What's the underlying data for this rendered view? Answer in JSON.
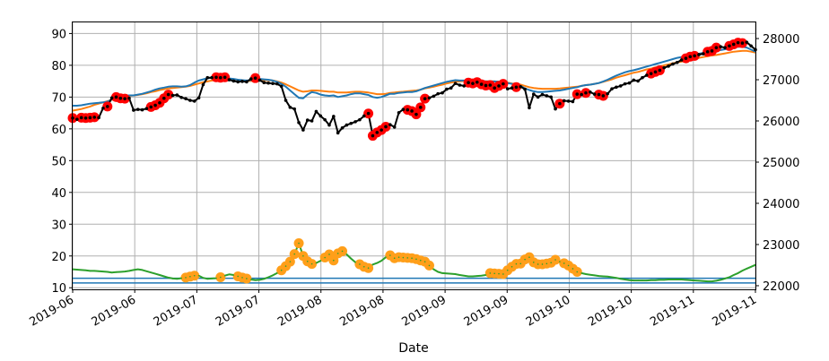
{
  "chart_data": {
    "type": "line",
    "xlabel": "Date",
    "x_tick_labels": [
      "2019-06",
      "2019-06",
      "2019-07",
      "2019-07",
      "2019-08",
      "2019-08",
      "2019-09",
      "2019-09",
      "2019-10",
      "2019-10",
      "2019-11",
      "2019-11"
    ],
    "y_left": {
      "ylim": [
        9.5,
        93.5
      ],
      "ticks": [
        10,
        20,
        30,
        40,
        50,
        60,
        70,
        80,
        90
      ]
    },
    "y_right": {
      "ylim": [
        21912,
        28392
      ],
      "ticks": [
        22000,
        23000,
        24000,
        25000,
        26000,
        27000,
        28000
      ]
    },
    "grid": true,
    "colors": {
      "price": "#000000",
      "signal_a": "#1f77b4",
      "signal_b": "#ff7f0e",
      "lower": "#2ca02c",
      "markers_high": "#ff0000",
      "markers_low": "#ff9f1a",
      "hlines": "#1f77b4"
    },
    "hlines_left": [
      11.5,
      13.0
    ],
    "series": [
      {
        "key": "price",
        "axis": "right",
        "marker": true,
        "values": [
          26070,
          26040,
          26080,
          26070,
          26080,
          26090,
          26080,
          26310,
          26350,
          26560,
          26580,
          26550,
          26540,
          26550,
          26260,
          26280,
          26270,
          26300,
          26340,
          26380,
          26440,
          26550,
          26640,
          26620,
          26630,
          26570,
          26540,
          26500,
          26480,
          26560,
          26880,
          27050,
          27050,
          27060,
          27050,
          27060,
          27000,
          26970,
          26950,
          26960,
          26950,
          27020,
          27040,
          26990,
          26930,
          26920,
          26910,
          26900,
          26840,
          26500,
          26330,
          26290,
          25960,
          25780,
          26020,
          26000,
          26230,
          26120,
          26030,
          25900,
          26110,
          25710,
          25830,
          25900,
          25940,
          25980,
          26030,
          26120,
          26180,
          25640,
          25720,
          25780,
          25860,
          25910,
          25850,
          26200,
          26280,
          26270,
          26240,
          26160,
          26330,
          26540,
          26560,
          26600,
          26660,
          26680,
          26770,
          26800,
          26910,
          26870,
          26850,
          26930,
          26910,
          26940,
          26890,
          26860,
          26870,
          26800,
          26850,
          26900,
          26780,
          26800,
          26820,
          26830,
          26770,
          26320,
          26650,
          26580,
          26640,
          26610,
          26580,
          26290,
          26420,
          26490,
          26480,
          26470,
          26650,
          26640,
          26680,
          26700,
          26650,
          26640,
          26610,
          26660,
          26780,
          26820,
          26850,
          26900,
          26920,
          26990,
          26970,
          27050,
          27110,
          27150,
          27190,
          27230,
          27290,
          27330,
          27380,
          27420,
          27480,
          27520,
          27560,
          27580,
          27610,
          27630,
          27680,
          27700,
          27780,
          27800,
          27780,
          27820,
          27860,
          27900,
          27890,
          27910,
          27820,
          27730
        ]
      },
      {
        "key": "signal_a",
        "axis": "right",
        "marker": false,
        "values": [
          26370,
          26370,
          26380,
          26400,
          26420,
          26430,
          26440,
          26450,
          26470,
          26520,
          26560,
          26590,
          26610,
          26620,
          26620,
          26640,
          26660,
          26690,
          26720,
          26760,
          26790,
          26810,
          26830,
          26840,
          26840,
          26830,
          26840,
          26870,
          26930,
          26980,
          27010,
          27040,
          27050,
          27050,
          27060,
          27040,
          27030,
          27020,
          27000,
          26990,
          26980,
          26990,
          27010,
          27020,
          27010,
          27000,
          26980,
          26950,
          26900,
          26830,
          26740,
          26650,
          26560,
          26550,
          26640,
          26700,
          26680,
          26640,
          26620,
          26610,
          26620,
          26580,
          26600,
          26620,
          26650,
          26670,
          26670,
          26650,
          26630,
          26580,
          26560,
          26580,
          26620,
          26660,
          26660,
          26680,
          26690,
          26700,
          26700,
          26720,
          26760,
          26800,
          26830,
          26860,
          26890,
          26920,
          26950,
          26970,
          26990,
          26980,
          26980,
          26990,
          26980,
          26980,
          26970,
          26960,
          26960,
          26960,
          26950,
          26940,
          26920,
          26900,
          26880,
          26850,
          26790,
          26750,
          26720,
          26700,
          26700,
          26710,
          26720,
          26730,
          26740,
          26760,
          26780,
          26800,
          26820,
          26850,
          26870,
          26880,
          26900,
          26920,
          26960,
          27000,
          27050,
          27100,
          27140,
          27180,
          27210,
          27230,
          27260,
          27290,
          27320,
          27350,
          27380,
          27410,
          27440,
          27470,
          27500,
          27530,
          27550,
          27580,
          27600,
          27620,
          27630,
          27650,
          27670,
          27690,
          27710,
          27720,
          27740,
          27760,
          27780,
          27800,
          27800,
          27780,
          27730,
          27680
        ]
      },
      {
        "key": "signal_b",
        "axis": "right",
        "marker": false,
        "values": [
          26250,
          26270,
          26290,
          26320,
          26350,
          26390,
          26420,
          26450,
          26480,
          26510,
          26540,
          26570,
          26590,
          26610,
          26620,
          26630,
          26650,
          26670,
          26700,
          26720,
          26750,
          26770,
          26790,
          26800,
          26810,
          26820,
          26830,
          26850,
          26880,
          26910,
          26940,
          26960,
          26980,
          26990,
          27000,
          27000,
          27000,
          27000,
          26990,
          26980,
          26970,
          26970,
          26980,
          26990,
          26990,
          26990,
          26980,
          26960,
          26930,
          26890,
          26840,
          26790,
          26740,
          26710,
          26720,
          26740,
          26740,
          26730,
          26720,
          26710,
          26710,
          26690,
          26690,
          26690,
          26700,
          26710,
          26710,
          26700,
          26690,
          26670,
          26650,
          26650,
          26660,
          26680,
          26690,
          26700,
          26710,
          26720,
          26730,
          26740,
          26760,
          26790,
          26810,
          26830,
          26860,
          26880,
          26910,
          26930,
          26950,
          26960,
          26970,
          26970,
          26970,
          26970,
          26970,
          26960,
          26960,
          26960,
          26950,
          26940,
          26930,
          26910,
          26900,
          26880,
          26850,
          26820,
          26800,
          26790,
          26780,
          26780,
          26780,
          26780,
          26790,
          26800,
          26810,
          26820,
          26830,
          26850,
          26870,
          26880,
          26900,
          26920,
          26950,
          26980,
          27010,
          27050,
          27080,
          27110,
          27140,
          27170,
          27190,
          27220,
          27250,
          27270,
          27300,
          27320,
          27350,
          27370,
          27400,
          27420,
          27440,
          27470,
          27490,
          27510,
          27530,
          27550,
          27570,
          27590,
          27600,
          27620,
          27640,
          27660,
          27680,
          27690,
          27700,
          27700,
          27680,
          27660
        ]
      },
      {
        "key": "lower",
        "axis": "left",
        "marker": false,
        "values": [
          15.8,
          15.7,
          15.6,
          15.5,
          15.3,
          15.3,
          15.2,
          15.1,
          15.0,
          14.8,
          14.9,
          15.0,
          15.1,
          15.3,
          15.6,
          15.8,
          15.6,
          15.2,
          14.8,
          14.4,
          14.0,
          13.6,
          13.2,
          12.9,
          12.8,
          13.0,
          13.2,
          13.5,
          13.8,
          13.8,
          13.1,
          12.8,
          12.9,
          13.0,
          13.3,
          13.8,
          14.2,
          14.0,
          13.6,
          13.2,
          12.9,
          12.6,
          12.4,
          12.5,
          12.8,
          13.3,
          13.9,
          14.6,
          15.5,
          16.8,
          18.2,
          20.6,
          24.0,
          20.0,
          18.3,
          17.5,
          17.8,
          18.5,
          19.5,
          20.5,
          18.6,
          20.8,
          21.5,
          20.5,
          19.2,
          18.0,
          17.4,
          16.6,
          16.2,
          17.3,
          17.8,
          18.5,
          19.6,
          20.2,
          19.3,
          19.6,
          19.5,
          19.4,
          19.3,
          19.0,
          18.6,
          18.2,
          17.0,
          15.8,
          15.0,
          14.6,
          14.5,
          14.4,
          14.3,
          14.0,
          13.8,
          13.6,
          13.6,
          13.7,
          13.8,
          14.0,
          14.6,
          14.5,
          14.4,
          14.3,
          15.5,
          16.6,
          17.5,
          17.6,
          18.9,
          19.6,
          18.0,
          17.4,
          17.4,
          17.6,
          17.9,
          18.8,
          18.2,
          17.7,
          17.0,
          16.0,
          15.0,
          14.6,
          14.3,
          14.1,
          13.9,
          13.7,
          13.6,
          13.5,
          13.3,
          13.1,
          12.8,
          12.6,
          12.4,
          12.3,
          12.3,
          12.3,
          12.3,
          12.4,
          12.4,
          12.5,
          12.5,
          12.6,
          12.6,
          12.6,
          12.6,
          12.5,
          12.4,
          12.3,
          12.2,
          12.1,
          12.0,
          12.0,
          12.2,
          12.5,
          12.9,
          13.3,
          14.0,
          14.6,
          15.4,
          16.0,
          16.6,
          17.2
        ]
      }
    ],
    "markers_high_idx": [
      0,
      2,
      3,
      4,
      5,
      8,
      10,
      11,
      12,
      18,
      19,
      20,
      21,
      22,
      33,
      34,
      35,
      42,
      68,
      69,
      70,
      71,
      72,
      77,
      78,
      79,
      80,
      81,
      91,
      92,
      93,
      94,
      95,
      96,
      97,
      98,
      99,
      102,
      112,
      116,
      118,
      121,
      122,
      133,
      134,
      135,
      141,
      142,
      143,
      146,
      147,
      148,
      151,
      152,
      153,
      154
    ],
    "markers_low_idx": [
      26,
      27,
      28,
      34,
      38,
      39,
      40,
      48,
      49,
      50,
      51,
      52,
      53,
      54,
      55,
      58,
      59,
      60,
      61,
      62,
      66,
      67,
      68,
      73,
      74,
      75,
      76,
      77,
      78,
      79,
      80,
      81,
      82,
      96,
      97,
      98,
      99,
      100,
      101,
      102,
      103,
      104,
      105,
      106,
      107,
      108,
      109,
      110,
      111,
      113,
      114,
      115,
      116
    ]
  }
}
